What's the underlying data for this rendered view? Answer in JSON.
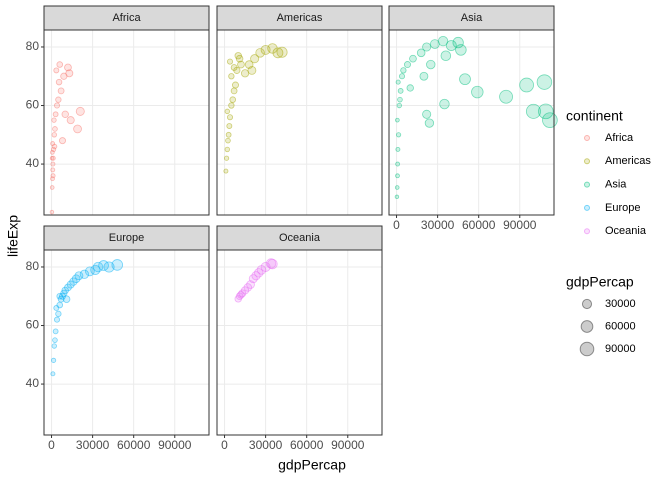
{
  "chart_data": {
    "type": "scatter",
    "x_label": "gdpPercap",
    "y_label": "lifeExp",
    "xlim": [
      -5500,
      115000
    ],
    "ylim": [
      22.6,
      85.8
    ],
    "xticks": [
      0,
      30000,
      60000,
      90000
    ],
    "yticks": [
      40,
      60,
      80
    ],
    "grid": true,
    "legend_title": "continent",
    "size_legend": {
      "title": "gdpPercap",
      "values": [
        30000,
        60000,
        90000
      ]
    },
    "series": [
      {
        "name": "Africa",
        "color": "#F8766D",
        "x": [
          300,
          500,
          700,
          900,
          1000,
          1200,
          1500,
          800,
          2000,
          2500,
          600,
          1800,
          3000,
          4000,
          5000,
          7000,
          9000,
          3500,
          6000,
          12000,
          14000,
          21000,
          19000,
          8000,
          10000,
          1100,
          400,
          2200,
          5500,
          13000
        ],
        "y": [
          23.6,
          32,
          35,
          38,
          40,
          42,
          45,
          47,
          50,
          52,
          44,
          55,
          57,
          60,
          62,
          65,
          70,
          72,
          74,
          73,
          55,
          58,
          52,
          48,
          57,
          36,
          42,
          46,
          68,
          71
        ]
      },
      {
        "name": "Americas",
        "color": "#A3A500",
        "x": [
          1000,
          1500,
          2000,
          2500,
          3000,
          3500,
          4000,
          2000,
          5000,
          6000,
          7000,
          8000,
          5000,
          9000,
          12000,
          4000,
          10000,
          15000,
          18000,
          22000,
          26000,
          30000,
          35000,
          39000,
          42000,
          20000,
          7000,
          11000
        ],
        "y": [
          37.6,
          42,
          45,
          48,
          50,
          53,
          56,
          58,
          60,
          62,
          65,
          67,
          70,
          72,
          74,
          75,
          77,
          71,
          74,
          76,
          78,
          79,
          79.5,
          78,
          78.2,
          72,
          73,
          76
        ]
      },
      {
        "name": "Asia",
        "color": "#00BF7D",
        "x": [
          300,
          500,
          700,
          800,
          1000,
          1500,
          600,
          2000,
          3000,
          1200,
          4000,
          5000,
          2500,
          8000,
          12000,
          18000,
          22000,
          28000,
          34000,
          40000,
          45000,
          20000,
          10000,
          25000,
          36000,
          47000,
          35000,
          22000,
          24000,
          50000,
          59000,
          80000,
          95000,
          100000,
          108000,
          112000,
          109000
        ],
        "y": [
          28.8,
          32,
          36,
          40,
          45,
          50,
          55,
          60,
          65,
          68,
          70,
          72,
          62,
          74,
          76,
          78,
          80,
          81,
          82,
          80.5,
          81.5,
          70,
          66,
          74,
          77,
          79,
          60.5,
          57,
          54,
          69,
          64.6,
          63,
          67,
          58,
          68,
          55,
          58
        ]
      },
      {
        "name": "Europe",
        "color": "#00B0F6",
        "x": [
          1000,
          1500,
          2000,
          2500,
          3000,
          4000,
          5000,
          6000,
          7000,
          8000,
          9000,
          10000,
          12000,
          14000,
          16000,
          18000,
          20000,
          24000,
          28000,
          32000,
          34000,
          38000,
          42000,
          48000,
          3500,
          6000,
          11000
        ],
        "y": [
          43.5,
          48.1,
          53,
          55,
          58,
          62,
          64,
          67,
          69,
          70,
          71,
          72,
          73,
          74,
          75,
          76,
          77,
          77.5,
          78.5,
          79,
          80,
          80.5,
          80,
          80.7,
          66,
          70,
          69
        ]
      },
      {
        "name": "Oceania",
        "color": "#E76BF3",
        "x": [
          10000,
          11000,
          12000,
          13000,
          15000,
          17000,
          19000,
          21000,
          23000,
          25000,
          27000,
          30000,
          35000,
          34000
        ],
        "y": [
          69.1,
          70,
          70.5,
          71,
          72,
          73,
          74,
          76,
          77,
          78,
          79,
          80,
          81,
          81.2
        ]
      }
    ]
  }
}
